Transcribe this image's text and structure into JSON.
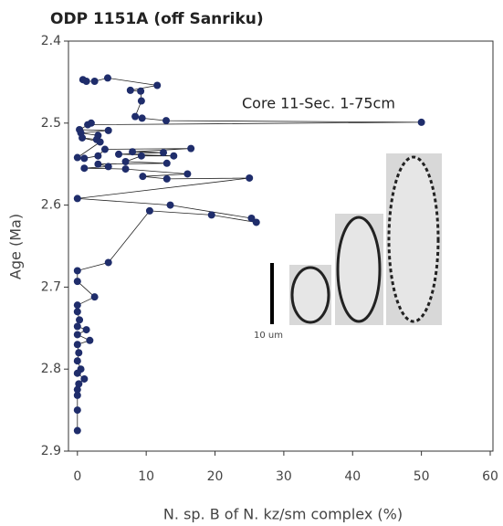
{
  "chart_data": {
    "type": "line",
    "title": "ODP 1151A (off Sanriku)",
    "x_label": "N. sp. B of N. kz/sm complex (%)",
    "y_label": "Age (Ma)",
    "annotation": "Core 11-Sec. 1-75cm",
    "scale_bar_label": "10 um",
    "color": "#1f2d6b",
    "y_inverted": true,
    "xlim": [
      -1.3,
      60.4
    ],
    "ylim": [
      2.4,
      2.9
    ],
    "xticks": [
      0,
      10,
      20,
      30,
      40,
      50,
      60
    ],
    "yticks": [
      2.4,
      2.5,
      2.6,
      2.7,
      2.8,
      2.9
    ],
    "x": [
      0.8,
      1.3,
      2.5,
      4.4,
      11.6,
      7.7,
      9.2,
      9.3,
      8.4,
      9.4,
      12.9,
      50.0,
      1.5,
      2.0,
      0.3,
      4.5,
      0.5,
      3.0,
      2.8,
      0.7,
      3.3,
      0.0,
      1.0,
      3.0,
      4.0,
      16.5,
      8.0,
      12.5,
      6.0,
      14.0,
      9.3,
      7.0,
      13.0,
      3.0,
      4.5,
      1.0,
      7.0,
      16.0,
      9.5,
      13.0,
      25.0,
      0.0,
      13.5,
      25.3,
      26.0,
      19.5,
      10.5,
      4.5,
      0.0,
      0.0,
      2.5,
      0.0,
      0.0,
      0.3,
      0.0,
      1.3,
      0.0,
      1.8,
      0.0,
      0.2,
      0.0,
      0.5,
      0.0,
      1.0,
      0.2,
      0.0,
      0.0,
      0.0,
      0.0
    ],
    "y": [
      2.447,
      2.449,
      2.449,
      2.445,
      2.454,
      2.46,
      2.461,
      2.473,
      2.492,
      2.494,
      2.497,
      2.499,
      2.502,
      2.5,
      2.508,
      2.509,
      2.512,
      2.515,
      2.52,
      2.518,
      2.523,
      2.542,
      2.543,
      2.54,
      2.532,
      2.531,
      2.535,
      2.536,
      2.538,
      2.54,
      2.54,
      2.547,
      2.549,
      2.55,
      2.553,
      2.555,
      2.556,
      2.562,
      2.565,
      2.568,
      2.567,
      2.592,
      2.6,
      2.616,
      2.621,
      2.612,
      2.607,
      2.67,
      2.68,
      2.693,
      2.712,
      2.722,
      2.73,
      2.74,
      2.748,
      2.752,
      2.758,
      2.765,
      2.77,
      2.78,
      2.79,
      2.8,
      2.805,
      2.812,
      2.818,
      2.825,
      2.832,
      2.85,
      2.875
    ]
  }
}
